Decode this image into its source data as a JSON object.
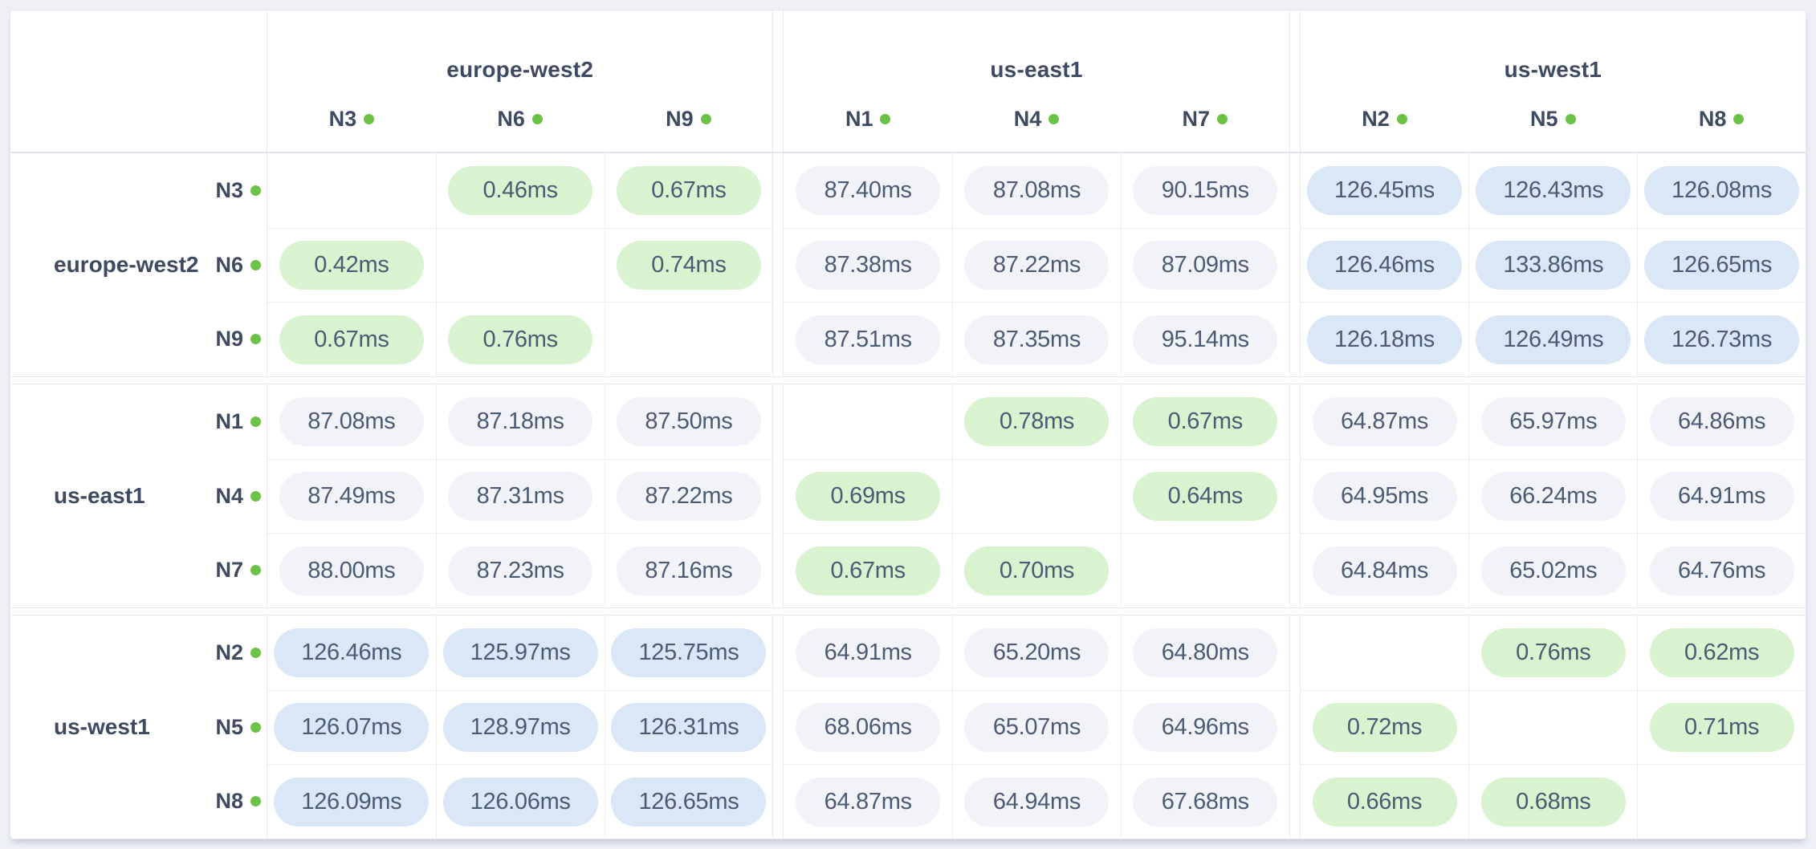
{
  "palette": {
    "page_bg": "#eef0f6",
    "card_bg": "#ffffff",
    "label_text": "#3e4a61",
    "pill_text": "#4c5b74",
    "pill_low_bg": "#d9f2cf",
    "pill_mid_bg": "#f1f3f8",
    "pill_high_bg": "#d9e7f7",
    "status_dot": "#6cc247",
    "grid_line": "#e6e9f0"
  },
  "unit": "ms",
  "column_groups": [
    {
      "name": "europe-west2",
      "nodes": [
        "N3",
        "N6",
        "N9"
      ]
    },
    {
      "name": "us-east1",
      "nodes": [
        "N1",
        "N4",
        "N7"
      ]
    },
    {
      "name": "us-west1",
      "nodes": [
        "N2",
        "N5",
        "N8"
      ]
    }
  ],
  "row_groups": [
    {
      "name": "europe-west2",
      "rows": [
        {
          "label": "N3",
          "cells": [
            {
              "text": "",
              "tier": "self"
            },
            {
              "text": "0.46ms",
              "tier": "low"
            },
            {
              "text": "0.67ms",
              "tier": "low"
            },
            {
              "text": "87.40ms",
              "tier": "mid"
            },
            {
              "text": "87.08ms",
              "tier": "mid"
            },
            {
              "text": "90.15ms",
              "tier": "mid"
            },
            {
              "text": "126.45ms",
              "tier": "high"
            },
            {
              "text": "126.43ms",
              "tier": "high"
            },
            {
              "text": "126.08ms",
              "tier": "high"
            }
          ]
        },
        {
          "label": "N6",
          "cells": [
            {
              "text": "0.42ms",
              "tier": "low"
            },
            {
              "text": "",
              "tier": "self"
            },
            {
              "text": "0.74ms",
              "tier": "low"
            },
            {
              "text": "87.38ms",
              "tier": "mid"
            },
            {
              "text": "87.22ms",
              "tier": "mid"
            },
            {
              "text": "87.09ms",
              "tier": "mid"
            },
            {
              "text": "126.46ms",
              "tier": "high"
            },
            {
              "text": "133.86ms",
              "tier": "high"
            },
            {
              "text": "126.65ms",
              "tier": "high"
            }
          ]
        },
        {
          "label": "N9",
          "cells": [
            {
              "text": "0.67ms",
              "tier": "low"
            },
            {
              "text": "0.76ms",
              "tier": "low"
            },
            {
              "text": "",
              "tier": "self"
            },
            {
              "text": "87.51ms",
              "tier": "mid"
            },
            {
              "text": "87.35ms",
              "tier": "mid"
            },
            {
              "text": "95.14ms",
              "tier": "mid"
            },
            {
              "text": "126.18ms",
              "tier": "high"
            },
            {
              "text": "126.49ms",
              "tier": "high"
            },
            {
              "text": "126.73ms",
              "tier": "high"
            }
          ]
        }
      ]
    },
    {
      "name": "us-east1",
      "rows": [
        {
          "label": "N1",
          "cells": [
            {
              "text": "87.08ms",
              "tier": "mid"
            },
            {
              "text": "87.18ms",
              "tier": "mid"
            },
            {
              "text": "87.50ms",
              "tier": "mid"
            },
            {
              "text": "",
              "tier": "self"
            },
            {
              "text": "0.78ms",
              "tier": "low"
            },
            {
              "text": "0.67ms",
              "tier": "low"
            },
            {
              "text": "64.87ms",
              "tier": "mid"
            },
            {
              "text": "65.97ms",
              "tier": "mid"
            },
            {
              "text": "64.86ms",
              "tier": "mid"
            }
          ]
        },
        {
          "label": "N4",
          "cells": [
            {
              "text": "87.49ms",
              "tier": "mid"
            },
            {
              "text": "87.31ms",
              "tier": "mid"
            },
            {
              "text": "87.22ms",
              "tier": "mid"
            },
            {
              "text": "0.69ms",
              "tier": "low"
            },
            {
              "text": "",
              "tier": "self"
            },
            {
              "text": "0.64ms",
              "tier": "low"
            },
            {
              "text": "64.95ms",
              "tier": "mid"
            },
            {
              "text": "66.24ms",
              "tier": "mid"
            },
            {
              "text": "64.91ms",
              "tier": "mid"
            }
          ]
        },
        {
          "label": "N7",
          "cells": [
            {
              "text": "88.00ms",
              "tier": "mid"
            },
            {
              "text": "87.23ms",
              "tier": "mid"
            },
            {
              "text": "87.16ms",
              "tier": "mid"
            },
            {
              "text": "0.67ms",
              "tier": "low"
            },
            {
              "text": "0.70ms",
              "tier": "low"
            },
            {
              "text": "",
              "tier": "self"
            },
            {
              "text": "64.84ms",
              "tier": "mid"
            },
            {
              "text": "65.02ms",
              "tier": "mid"
            },
            {
              "text": "64.76ms",
              "tier": "mid"
            }
          ]
        }
      ]
    },
    {
      "name": "us-west1",
      "rows": [
        {
          "label": "N2",
          "cells": [
            {
              "text": "126.46ms",
              "tier": "high"
            },
            {
              "text": "125.97ms",
              "tier": "high"
            },
            {
              "text": "125.75ms",
              "tier": "high"
            },
            {
              "text": "64.91ms",
              "tier": "mid"
            },
            {
              "text": "65.20ms",
              "tier": "mid"
            },
            {
              "text": "64.80ms",
              "tier": "mid"
            },
            {
              "text": "",
              "tier": "self"
            },
            {
              "text": "0.76ms",
              "tier": "low"
            },
            {
              "text": "0.62ms",
              "tier": "low"
            }
          ]
        },
        {
          "label": "N5",
          "cells": [
            {
              "text": "126.07ms",
              "tier": "high"
            },
            {
              "text": "128.97ms",
              "tier": "high"
            },
            {
              "text": "126.31ms",
              "tier": "high"
            },
            {
              "text": "68.06ms",
              "tier": "mid"
            },
            {
              "text": "65.07ms",
              "tier": "mid"
            },
            {
              "text": "64.96ms",
              "tier": "mid"
            },
            {
              "text": "0.72ms",
              "tier": "low"
            },
            {
              "text": "",
              "tier": "self"
            },
            {
              "text": "0.71ms",
              "tier": "low"
            }
          ]
        },
        {
          "label": "N8",
          "cells": [
            {
              "text": "126.09ms",
              "tier": "high"
            },
            {
              "text": "126.06ms",
              "tier": "high"
            },
            {
              "text": "126.65ms",
              "tier": "high"
            },
            {
              "text": "64.87ms",
              "tier": "mid"
            },
            {
              "text": "64.94ms",
              "tier": "mid"
            },
            {
              "text": "67.68ms",
              "tier": "mid"
            },
            {
              "text": "0.66ms",
              "tier": "low"
            },
            {
              "text": "0.68ms",
              "tier": "low"
            },
            {
              "text": "",
              "tier": "self"
            }
          ]
        }
      ]
    }
  ]
}
